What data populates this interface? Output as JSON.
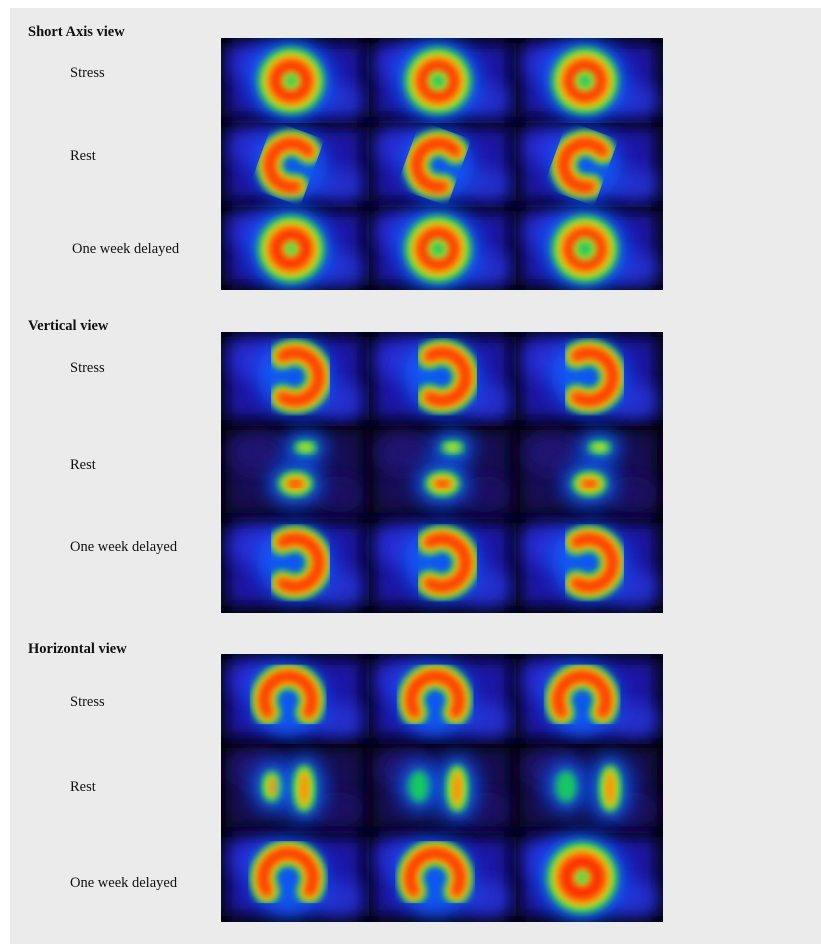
{
  "sections": [
    {
      "title": "Short Axis view",
      "rows": [
        {
          "label": "Stress"
        },
        {
          "label": "Rest"
        },
        {
          "label": "One week delayed"
        }
      ]
    },
    {
      "title": "Vertical view",
      "rows": [
        {
          "label": "Stress"
        },
        {
          "label": "Rest"
        },
        {
          "label": "One week delayed"
        }
      ]
    },
    {
      "title": "Horizontal view",
      "rows": [
        {
          "label": "Stress"
        },
        {
          "label": "Rest"
        },
        {
          "label": "One week delayed"
        }
      ]
    }
  ],
  "colors": {
    "panel_background": "#ebebeb",
    "image_background": "#000000",
    "colormap": [
      "#1a0066",
      "#2a2ad8",
      "#1060ff",
      "#14c864",
      "#d8e61e",
      "#ff7a00",
      "#ff2a00"
    ]
  }
}
